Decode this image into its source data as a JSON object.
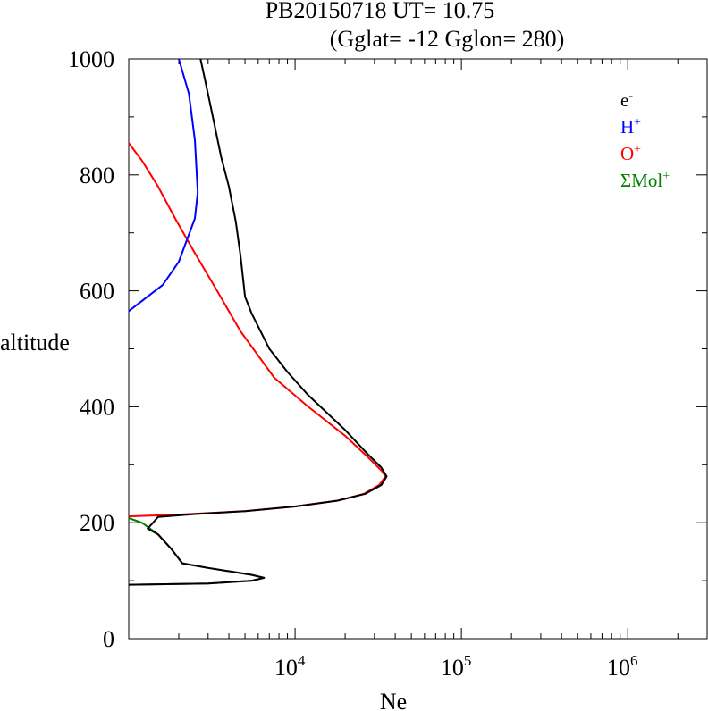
{
  "header": {
    "line1": "PB20150718   UT=  10.75",
    "line2": "(Gglat= -12   Gglon=  280)"
  },
  "chart_data": {
    "type": "line",
    "xlabel": "Ne",
    "ylabel": "altitude",
    "xscale": "log",
    "xlim": [
      1000,
      3000000
    ],
    "ylim": [
      0,
      1000
    ],
    "y_ticks": [
      "0",
      "200",
      "400",
      "600",
      "800",
      "1000"
    ],
    "x_ticks": [
      {
        "base": "10",
        "exp": "4",
        "value": 10000
      },
      {
        "base": "10",
        "exp": "5",
        "value": 100000
      },
      {
        "base": "10",
        "exp": "6",
        "value": 1000000
      }
    ],
    "grid": false,
    "legend_position": "top-right",
    "legend": [
      {
        "name": "e",
        "sup": "-",
        "color": "#000000"
      },
      {
        "name": "H",
        "sup": "+",
        "color": "#0000ff"
      },
      {
        "name": "O",
        "sup": "+",
        "color": "#ff0000"
      },
      {
        "name": "ΣMol",
        "sup": "+",
        "color": "#008000"
      }
    ],
    "series": [
      {
        "key": "mol",
        "color": "#008000",
        "points": [
          [
            1000,
            208
          ],
          [
            1200,
            200
          ],
          [
            1500,
            180
          ],
          [
            1800,
            155
          ],
          [
            2100,
            130
          ],
          [
            3000,
            122
          ],
          [
            5500,
            110
          ],
          [
            6500,
            105
          ],
          [
            5500,
            100
          ],
          [
            3000,
            95
          ],
          [
            1000,
            93
          ]
        ]
      },
      {
        "key": "o",
        "color": "#ff0000",
        "points": [
          [
            1000,
            855
          ],
          [
            1200,
            825
          ],
          [
            1500,
            780
          ],
          [
            1900,
            725
          ],
          [
            2500,
            665
          ],
          [
            3400,
            600
          ],
          [
            4700,
            530
          ],
          [
            7500,
            450
          ],
          [
            12000,
            400
          ],
          [
            20000,
            350
          ],
          [
            27000,
            315
          ],
          [
            33000,
            290
          ],
          [
            35000,
            280
          ],
          [
            32000,
            265
          ],
          [
            26000,
            250
          ],
          [
            18000,
            238
          ],
          [
            10000,
            228
          ],
          [
            5000,
            220
          ],
          [
            2000,
            214
          ],
          [
            1000,
            211
          ]
        ]
      },
      {
        "key": "h",
        "color": "#0000ff",
        "points": [
          [
            1000,
            565
          ],
          [
            1600,
            610
          ],
          [
            2000,
            650
          ],
          [
            2500,
            725
          ],
          [
            2600,
            770
          ],
          [
            2500,
            860
          ],
          [
            2300,
            940
          ],
          [
            2000,
            1000
          ]
        ]
      },
      {
        "key": "e",
        "color": "#000000",
        "points": [
          [
            2700,
            1000
          ],
          [
            3100,
            920
          ],
          [
            3600,
            830
          ],
          [
            4000,
            780
          ],
          [
            4400,
            720
          ],
          [
            4700,
            660
          ],
          [
            5000,
            590
          ],
          [
            5500,
            560
          ],
          [
            7000,
            500
          ],
          [
            9000,
            460
          ],
          [
            12000,
            420
          ],
          [
            20000,
            360
          ],
          [
            27000,
            320
          ],
          [
            33000,
            295
          ],
          [
            35500,
            280
          ],
          [
            33000,
            265
          ],
          [
            26500,
            250
          ],
          [
            18000,
            238
          ],
          [
            10000,
            228
          ],
          [
            5000,
            220
          ],
          [
            2500,
            215
          ],
          [
            1500,
            210
          ],
          [
            1400,
            200
          ],
          [
            1300,
            190
          ],
          [
            1500,
            180
          ],
          [
            1800,
            155
          ],
          [
            2100,
            130
          ],
          [
            3000,
            122
          ],
          [
            5500,
            110
          ],
          [
            6500,
            105
          ],
          [
            5500,
            100
          ],
          [
            3000,
            95
          ],
          [
            1000,
            93
          ]
        ]
      }
    ]
  }
}
